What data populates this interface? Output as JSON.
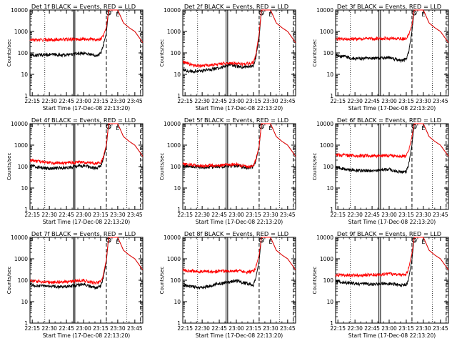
{
  "figure": {
    "time_tick_labels": [
      "22:15",
      "22:30",
      "22:45",
      "23:00",
      "23:15",
      "23:30",
      "23:45"
    ],
    "y_tick_labels": [
      "1",
      "10",
      "100",
      "1000",
      "10000"
    ],
    "colors": {
      "events": "#000000",
      "lld": "#ff0000",
      "axes": "#000000",
      "background": "#ffffff"
    }
  },
  "chart_data": [
    {
      "type": "line",
      "title": "Det 1f BLACK = Events, RED = LLD",
      "xlabel": "Start Time (17-Dec-08 22:13:20)",
      "ylabel": "Counts/sec",
      "yscale": "log",
      "ylim": [
        1,
        10000
      ],
      "xlim": [
        "22:13",
        "23:52"
      ],
      "markers": {
        "S_time": "23:22",
        "E_time": "23:30"
      },
      "series": [
        {
          "name": "Events",
          "color": "#000000",
          "x": [
            "22:13",
            "22:30",
            "22:45",
            "23:00",
            "23:10",
            "23:15",
            "23:17",
            "23:20",
            "23:22",
            "23:25",
            "23:30",
            "23:35",
            "23:40",
            "23:45",
            "23:48",
            "23:52"
          ],
          "y": [
            75,
            85,
            80,
            100,
            78,
            90,
            200,
            800,
            10000,
            10000,
            10000,
            2500,
            1500,
            1000,
            600,
            300
          ]
        },
        {
          "name": "LLD",
          "color": "#ff0000",
          "x": [
            "22:13",
            "22:30",
            "22:45",
            "23:00",
            "23:10",
            "23:15",
            "23:17",
            "23:20",
            "23:22",
            "23:25",
            "23:30",
            "23:35",
            "23:40",
            "23:45",
            "23:48",
            "23:52"
          ],
          "y": [
            400,
            420,
            430,
            450,
            420,
            450,
            600,
            1500,
            10000,
            10000,
            10000,
            2500,
            1500,
            1000,
            600,
            300
          ]
        }
      ]
    },
    {
      "type": "line",
      "title": "Det 2f BLACK = Events, RED = LLD",
      "xlabel": "Start Time (17-Dec-08 22:13:20)",
      "ylabel": "Counts/sec",
      "yscale": "log",
      "ylim": [
        1,
        10000
      ],
      "xlim": [
        "22:13",
        "23:52"
      ],
      "markers": {
        "S_time": "23:22",
        "E_time": "23:30"
      },
      "series": [
        {
          "name": "Events",
          "color": "#000000",
          "x": [
            "22:13",
            "22:22",
            "22:30",
            "22:45",
            "22:55",
            "23:05",
            "23:15",
            "23:17",
            "23:20",
            "23:22",
            "23:25",
            "23:30",
            "23:35",
            "23:40",
            "23:45",
            "23:52"
          ],
          "y": [
            15,
            14,
            15,
            20,
            28,
            22,
            25,
            60,
            500,
            10000,
            10000,
            10000,
            2500,
            1500,
            1000,
            300
          ]
        },
        {
          "name": "LLD",
          "color": "#ff0000",
          "x": [
            "22:13",
            "22:22",
            "22:30",
            "22:45",
            "22:55",
            "23:05",
            "23:15",
            "23:17",
            "23:20",
            "23:22",
            "23:25",
            "23:30",
            "23:35",
            "23:40",
            "23:45",
            "23:52"
          ],
          "y": [
            40,
            25,
            25,
            30,
            35,
            30,
            35,
            80,
            800,
            10000,
            10000,
            10000,
            2500,
            1500,
            1000,
            300
          ]
        }
      ]
    },
    {
      "type": "line",
      "title": "Det 3f BLACK = Events, RED = LLD",
      "xlabel": "Start Time (17-Dec-08 22:13:20)",
      "ylabel": "Counts/sec",
      "yscale": "log",
      "ylim": [
        1,
        10000
      ],
      "xlim": [
        "22:13",
        "23:52"
      ],
      "markers": {
        "S_time": "23:22",
        "E_time": "23:30"
      },
      "series": [
        {
          "name": "Events",
          "color": "#000000",
          "x": [
            "22:13",
            "22:30",
            "22:45",
            "23:00",
            "23:10",
            "23:15",
            "23:17",
            "23:20",
            "23:22",
            "23:25",
            "23:30",
            "23:35",
            "23:40",
            "23:45",
            "23:48",
            "23:52"
          ],
          "y": [
            80,
            55,
            55,
            60,
            45,
            50,
            100,
            1000,
            10000,
            10000,
            10000,
            2500,
            1500,
            1000,
            600,
            300
          ]
        },
        {
          "name": "LLD",
          "color": "#ff0000",
          "x": [
            "22:13",
            "22:30",
            "22:45",
            "23:00",
            "23:10",
            "23:15",
            "23:17",
            "23:20",
            "23:22",
            "23:25",
            "23:30",
            "23:35",
            "23:40",
            "23:45",
            "23:48",
            "23:52"
          ],
          "y": [
            450,
            450,
            460,
            470,
            460,
            470,
            700,
            2000,
            10000,
            10000,
            10000,
            2500,
            1500,
            1000,
            600,
            300
          ]
        }
      ]
    },
    {
      "type": "line",
      "title": "Det 4f BLACK = Events, RED = LLD",
      "xlabel": "Start Time (17-Dec-08 22:13:20)",
      "ylabel": "Counts/sec",
      "yscale": "log",
      "ylim": [
        1,
        10000
      ],
      "xlim": [
        "22:13",
        "23:52"
      ],
      "markers": {
        "S_time": "23:22",
        "E_time": "23:30"
      },
      "series": [
        {
          "name": "Events",
          "color": "#000000",
          "x": [
            "22:13",
            "22:30",
            "22:45",
            "23:00",
            "23:10",
            "23:15",
            "23:17",
            "23:20",
            "23:22",
            "23:25",
            "23:30",
            "23:35",
            "23:40",
            "23:45",
            "23:48",
            "23:52"
          ],
          "y": [
            110,
            80,
            90,
            110,
            85,
            100,
            200,
            800,
            10000,
            10000,
            10000,
            2500,
            1500,
            1000,
            600,
            300
          ]
        },
        {
          "name": "LLD",
          "color": "#ff0000",
          "x": [
            "22:13",
            "22:30",
            "22:45",
            "23:00",
            "23:10",
            "23:15",
            "23:17",
            "23:20",
            "23:22",
            "23:25",
            "23:30",
            "23:35",
            "23:40",
            "23:45",
            "23:48",
            "23:52"
          ],
          "y": [
            200,
            150,
            150,
            160,
            140,
            150,
            250,
            1000,
            10000,
            10000,
            10000,
            2500,
            1500,
            1000,
            600,
            300
          ]
        }
      ]
    },
    {
      "type": "line",
      "title": "Det 5f BLACK = Events, RED = LLD",
      "xlabel": "Start Time (17-Dec-08 22:13:20)",
      "ylabel": "Counts/sec",
      "yscale": "log",
      "ylim": [
        1,
        10000
      ],
      "xlim": [
        "22:13",
        "23:52"
      ],
      "markers": {
        "S_time": "23:22",
        "E_time": "23:30"
      },
      "series": [
        {
          "name": "Events",
          "color": "#000000",
          "x": [
            "22:13",
            "22:30",
            "22:45",
            "23:00",
            "23:10",
            "23:15",
            "23:17",
            "23:20",
            "23:22",
            "23:25",
            "23:30",
            "23:35",
            "23:40",
            "23:45",
            "23:48",
            "23:52"
          ],
          "y": [
            110,
            95,
            100,
            110,
            90,
            100,
            180,
            800,
            10000,
            10000,
            10000,
            2500,
            1500,
            1000,
            600,
            300
          ]
        },
        {
          "name": "LLD",
          "color": "#ff0000",
          "x": [
            "22:13",
            "22:30",
            "22:45",
            "23:00",
            "23:10",
            "23:15",
            "23:17",
            "23:20",
            "23:22",
            "23:25",
            "23:30",
            "23:35",
            "23:40",
            "23:45",
            "23:48",
            "23:52"
          ],
          "y": [
            130,
            110,
            115,
            125,
            100,
            110,
            200,
            900,
            10000,
            10000,
            10000,
            2500,
            1500,
            1000,
            600,
            300
          ]
        }
      ]
    },
    {
      "type": "line",
      "title": "Det 6f BLACK = Events, RED = LLD",
      "xlabel": "Start Time (17-Dec-08 22:13:20)",
      "ylabel": "Counts/sec",
      "yscale": "log",
      "ylim": [
        1,
        10000
      ],
      "xlim": [
        "22:13",
        "23:52"
      ],
      "markers": {
        "S_time": "23:22",
        "E_time": "23:30"
      },
      "series": [
        {
          "name": "Events",
          "color": "#000000",
          "x": [
            "22:13",
            "22:30",
            "22:45",
            "23:00",
            "23:10",
            "23:15",
            "23:17",
            "23:20",
            "23:22",
            "23:25",
            "23:30",
            "23:35",
            "23:40",
            "23:45",
            "23:48",
            "23:52"
          ],
          "y": [
            90,
            65,
            65,
            75,
            55,
            60,
            120,
            1000,
            10000,
            10000,
            10000,
            2500,
            1500,
            1000,
            600,
            300
          ]
        },
        {
          "name": "LLD",
          "color": "#ff0000",
          "x": [
            "22:13",
            "22:30",
            "22:45",
            "23:00",
            "23:10",
            "23:15",
            "23:17",
            "23:20",
            "23:22",
            "23:25",
            "23:30",
            "23:35",
            "23:40",
            "23:45",
            "23:48",
            "23:52"
          ],
          "y": [
            350,
            320,
            320,
            330,
            300,
            310,
            500,
            2500,
            10000,
            10000,
            10000,
            2500,
            1500,
            1000,
            600,
            300
          ]
        }
      ]
    },
    {
      "type": "line",
      "title": "Det 7f BLACK = Events, RED = LLD",
      "xlabel": "Start Time (17-Dec-08 22:13:20)",
      "ylabel": "Counts/sec",
      "yscale": "log",
      "ylim": [
        1,
        10000
      ],
      "xlim": [
        "22:13",
        "23:52"
      ],
      "markers": {
        "S_time": "23:22",
        "E_time": "23:30"
      },
      "series": [
        {
          "name": "Events",
          "color": "#000000",
          "x": [
            "22:13",
            "22:30",
            "22:45",
            "23:00",
            "23:10",
            "23:15",
            "23:17",
            "23:20",
            "23:22",
            "23:25",
            "23:30",
            "23:35",
            "23:40",
            "23:45",
            "23:48",
            "23:52"
          ],
          "y": [
            60,
            50,
            50,
            65,
            45,
            55,
            110,
            700,
            10000,
            10000,
            10000,
            2500,
            1500,
            1000,
            600,
            300
          ]
        },
        {
          "name": "LLD",
          "color": "#ff0000",
          "x": [
            "22:13",
            "22:30",
            "22:45",
            "23:00",
            "23:10",
            "23:15",
            "23:17",
            "23:20",
            "23:22",
            "23:25",
            "23:30",
            "23:35",
            "23:40",
            "23:45",
            "23:48",
            "23:52"
          ],
          "y": [
            100,
            80,
            85,
            100,
            75,
            85,
            150,
            900,
            10000,
            10000,
            10000,
            2500,
            1500,
            1000,
            600,
            300
          ]
        }
      ]
    },
    {
      "type": "line",
      "title": "Det 8f BLACK = Events, RED = LLD",
      "xlabel": "Start Time (17-Dec-08 22:13:20)",
      "ylabel": "Counts/sec",
      "yscale": "log",
      "ylim": [
        1,
        10000
      ],
      "xlim": [
        "22:13",
        "23:52"
      ],
      "markers": {
        "S_time": "23:22",
        "E_time": "23:30"
      },
      "series": [
        {
          "name": "Events",
          "color": "#000000",
          "x": [
            "22:13",
            "22:30",
            "22:45",
            "23:00",
            "23:10",
            "23:15",
            "23:17",
            "23:20",
            "23:22",
            "23:25",
            "23:30",
            "23:35",
            "23:40",
            "23:45",
            "23:48",
            "23:52"
          ],
          "y": [
            60,
            45,
            70,
            95,
            70,
            60,
            120,
            800,
            10000,
            10000,
            10000,
            2500,
            1500,
            1000,
            600,
            300
          ]
        },
        {
          "name": "LLD",
          "color": "#ff0000",
          "x": [
            "22:13",
            "22:30",
            "22:45",
            "23:00",
            "23:10",
            "23:15",
            "23:17",
            "23:20",
            "23:22",
            "23:25",
            "23:30",
            "23:35",
            "23:40",
            "23:45",
            "23:48",
            "23:52"
          ],
          "y": [
            300,
            250,
            260,
            280,
            250,
            260,
            400,
            1500,
            10000,
            10000,
            10000,
            2500,
            1500,
            1000,
            600,
            300
          ]
        }
      ]
    },
    {
      "type": "line",
      "title": "Det 9f BLACK = Events, RED = LLD",
      "xlabel": "Start Time (17-Dec-08 22:13:20)",
      "ylabel": "Counts/sec",
      "yscale": "log",
      "ylim": [
        1,
        10000
      ],
      "xlim": [
        "22:13",
        "23:52"
      ],
      "markers": {
        "S_time": "23:22",
        "E_time": "23:30"
      },
      "series": [
        {
          "name": "Events",
          "color": "#000000",
          "x": [
            "22:13",
            "22:30",
            "22:45",
            "23:00",
            "23:10",
            "23:15",
            "23:17",
            "23:20",
            "23:22",
            "23:25",
            "23:30",
            "23:35",
            "23:40",
            "23:45",
            "23:48",
            "23:52"
          ],
          "y": [
            90,
            70,
            65,
            70,
            60,
            60,
            110,
            900,
            10000,
            10000,
            10000,
            2500,
            1500,
            1000,
            600,
            300
          ]
        },
        {
          "name": "LLD",
          "color": "#ff0000",
          "x": [
            "22:13",
            "22:30",
            "22:45",
            "23:00",
            "23:10",
            "23:15",
            "23:17",
            "23:20",
            "23:22",
            "23:25",
            "23:30",
            "23:35",
            "23:40",
            "23:45",
            "23:48",
            "23:52"
          ],
          "y": [
            180,
            170,
            180,
            200,
            180,
            190,
            350,
            1800,
            10000,
            10000,
            10000,
            2500,
            1500,
            1000,
            600,
            300
          ]
        }
      ]
    }
  ]
}
